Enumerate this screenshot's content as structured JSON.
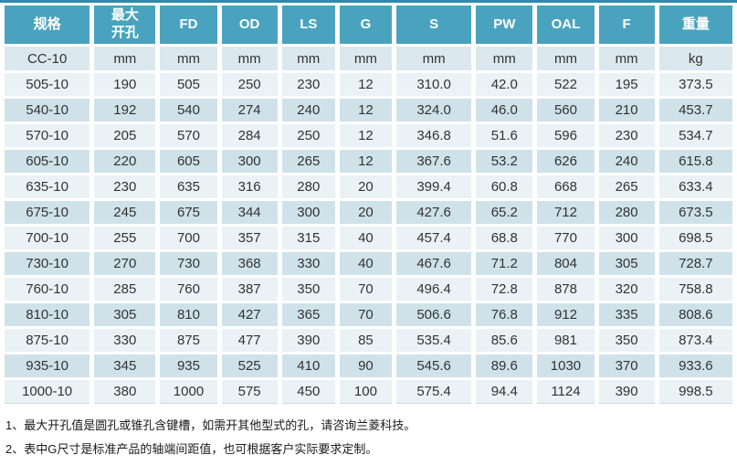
{
  "theme": {
    "header_bg": "#4aa3be",
    "header_text": "#ffffff",
    "top_bar": "#2e8ba8",
    "unit_row_bg": "#dbe8ee",
    "row_light_bg": "#eaf2f5",
    "row_dark_bg": "#cfe2ea",
    "cell_text": "#333333",
    "note_text": "#1a1a1a"
  },
  "table": {
    "columns": [
      {
        "id": "spec",
        "label": "规格"
      },
      {
        "id": "max-bore",
        "label": "最大\n开孔"
      },
      {
        "id": "fd",
        "label": "FD"
      },
      {
        "id": "od",
        "label": "OD"
      },
      {
        "id": "ls",
        "label": "LS"
      },
      {
        "id": "g",
        "label": "G"
      },
      {
        "id": "s",
        "label": "S"
      },
      {
        "id": "pw",
        "label": "PW"
      },
      {
        "id": "oal",
        "label": "OAL"
      },
      {
        "id": "f",
        "label": "F"
      },
      {
        "id": "weight",
        "label": "重量"
      }
    ],
    "unit_row": [
      "CC-10",
      "mm",
      "mm",
      "mm",
      "mm",
      "mm",
      "mm",
      "mm",
      "mm",
      "mm",
      "kg"
    ],
    "rows": [
      [
        "505-10",
        "190",
        "505",
        "250",
        "230",
        "12",
        "310.0",
        "42.0",
        "522",
        "195",
        "373.5"
      ],
      [
        "540-10",
        "192",
        "540",
        "274",
        "240",
        "12",
        "324.0",
        "46.0",
        "560",
        "210",
        "453.7"
      ],
      [
        "570-10",
        "205",
        "570",
        "284",
        "250",
        "12",
        "346.8",
        "51.6",
        "596",
        "230",
        "534.7"
      ],
      [
        "605-10",
        "220",
        "605",
        "300",
        "265",
        "12",
        "367.6",
        "53.2",
        "626",
        "240",
        "615.8"
      ],
      [
        "635-10",
        "230",
        "635",
        "316",
        "280",
        "20",
        "399.4",
        "60.8",
        "668",
        "265",
        "633.4"
      ],
      [
        "675-10",
        "245",
        "675",
        "344",
        "300",
        "20",
        "427.6",
        "65.2",
        "712",
        "280",
        "673.5"
      ],
      [
        "700-10",
        "255",
        "700",
        "357",
        "315",
        "40",
        "457.4",
        "68.8",
        "770",
        "300",
        "698.5"
      ],
      [
        "730-10",
        "270",
        "730",
        "368",
        "330",
        "40",
        "467.6",
        "71.2",
        "804",
        "305",
        "728.7"
      ],
      [
        "760-10",
        "285",
        "760",
        "387",
        "350",
        "70",
        "496.4",
        "72.8",
        "878",
        "320",
        "758.8"
      ],
      [
        "810-10",
        "305",
        "810",
        "427",
        "365",
        "70",
        "506.6",
        "76.8",
        "912",
        "335",
        "808.6"
      ],
      [
        "875-10",
        "330",
        "875",
        "477",
        "390",
        "85",
        "535.4",
        "85.6",
        "981",
        "350",
        "873.4"
      ],
      [
        "935-10",
        "345",
        "935",
        "525",
        "410",
        "90",
        "545.6",
        "89.6",
        "1030",
        "370",
        "933.6"
      ],
      [
        "1000-10",
        "380",
        "1000",
        "575",
        "450",
        "100",
        "575.4",
        "94.4",
        "1124",
        "390",
        "998.5"
      ]
    ]
  },
  "notes": [
    {
      "text": "1、最大开孔值是圆孔或锥孔含键槽，如需开其他型式的孔，请咨询兰菱科技。"
    },
    {
      "text": "2、表中G尺寸是标准产品的轴端间距值，也可根据客户实际要求定制。"
    }
  ]
}
